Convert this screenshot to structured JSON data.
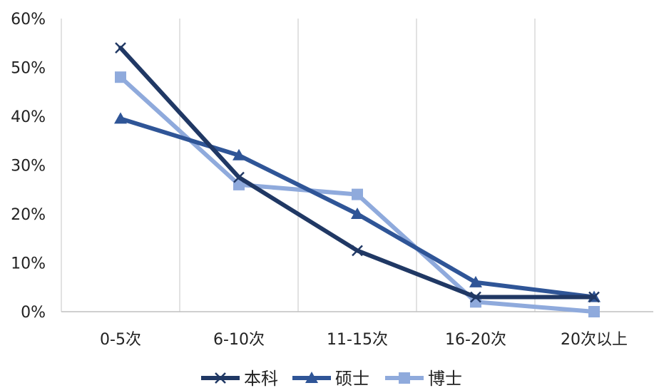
{
  "chart_data": {
    "type": "line",
    "categories": [
      "0-5次",
      "6-10次",
      "11-15次",
      "16-20次",
      "20次以上"
    ],
    "y_ticks": [
      "0%",
      "10%",
      "20%",
      "30%",
      "40%",
      "50%",
      "60%"
    ],
    "ylim": [
      0,
      60
    ],
    "grid": "vertical",
    "legend_position": "bottom",
    "series": [
      {
        "name": "本科",
        "marker": "x",
        "color": "#203864",
        "values": [
          54,
          27.5,
          12.5,
          3,
          3
        ]
      },
      {
        "name": "硕士",
        "marker": "triangle",
        "color": "#2F5597",
        "values": [
          39.5,
          32,
          20,
          6,
          3
        ]
      },
      {
        "name": "博士",
        "marker": "square",
        "color": "#8FAADC",
        "values": [
          48,
          26,
          24,
          2,
          0
        ]
      }
    ]
  }
}
